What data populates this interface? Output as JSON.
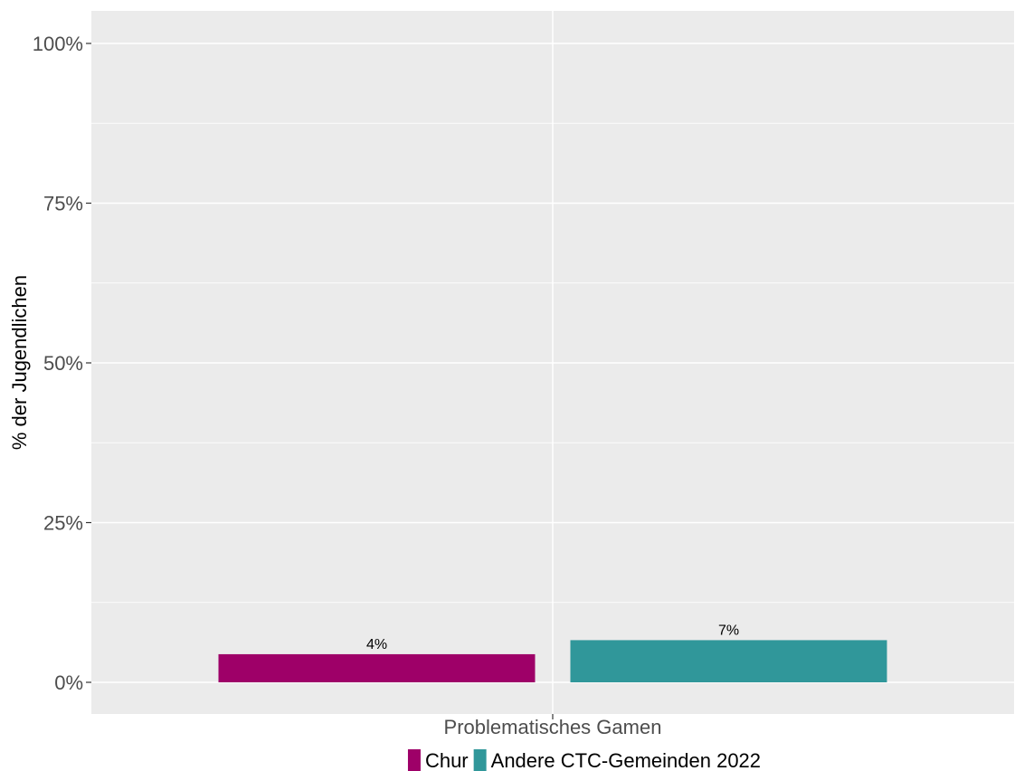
{
  "chart_data": {
    "type": "bar",
    "categories": [
      "Problematisches Gamen"
    ],
    "series": [
      {
        "name": "Chur",
        "values": [
          4.4
        ],
        "label": "4%",
        "color": "#9e0068"
      },
      {
        "name": "Andere CTC-Gemeinden 2022",
        "values": [
          6.6
        ],
        "label": "7%",
        "color": "#30979a"
      }
    ],
    "ylabel": "% der Jugendlichen",
    "xlabel": "",
    "ylim": [
      0,
      100
    ],
    "yticks": [
      0,
      25,
      50,
      75,
      100
    ],
    "ytick_labels": [
      "0%",
      "25%",
      "50%",
      "75%",
      "100%"
    ],
    "grid": true,
    "panel_background": "#ebebeb",
    "grid_color": "#ffffff",
    "legend_position": "bottom"
  }
}
